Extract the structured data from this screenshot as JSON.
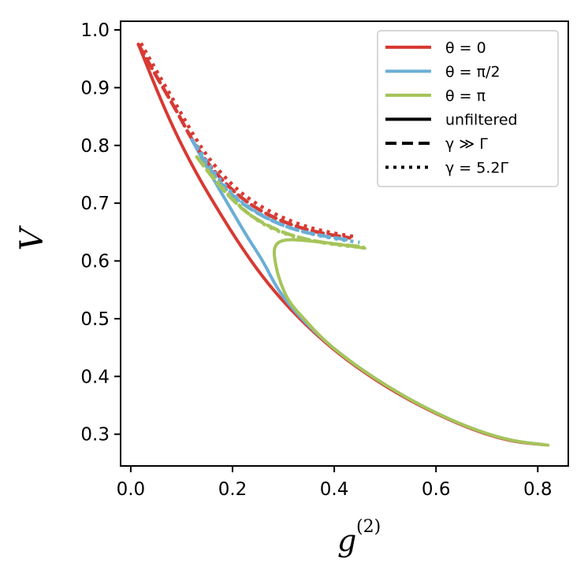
{
  "chart_data": {
    "type": "line",
    "title": "",
    "xlabel": "g",
    "xlabel_sup": "(2)",
    "ylabel": "V",
    "xlim": [
      -0.02,
      0.86
    ],
    "ylim": [
      0.245,
      1.015
    ],
    "x_ticks": [
      0.0,
      0.2,
      0.4,
      0.6,
      0.8
    ],
    "x_tick_labels": [
      "0.0",
      "0.2",
      "0.4",
      "0.6",
      "0.8"
    ],
    "y_ticks": [
      0.3,
      0.4,
      0.5,
      0.6,
      0.7,
      0.8,
      0.9,
      1.0
    ],
    "y_tick_labels": [
      "0.3",
      "0.4",
      "0.5",
      "0.6",
      "0.7",
      "0.8",
      "0.9",
      "1.0"
    ],
    "grid": false,
    "legend_position": "top-right",
    "legend": [
      {
        "label": "θ = 0",
        "color": "#d73a33",
        "style": "solid"
      },
      {
        "label": "θ = π/2",
        "color": "#6aaed6",
        "style": "solid"
      },
      {
        "label": "θ = π",
        "color": "#a6c45a",
        "style": "solid"
      },
      {
        "label": "unfiltered",
        "color": "#000000",
        "style": "solid"
      },
      {
        "label": "γ ≫ Γ",
        "color": "#000000",
        "style": "dashed"
      },
      {
        "label": "γ = 5.2Γ",
        "color": "#000000",
        "style": "dotted"
      }
    ],
    "series": [
      {
        "name": "θ=0 unfiltered",
        "color": "#d73a33",
        "style": "solid",
        "x": [
          0.81,
          0.75,
          0.68,
          0.6,
          0.52,
          0.44,
          0.38,
          0.32,
          0.27,
          0.22,
          0.17,
          0.12,
          0.07,
          0.015
        ],
        "y": [
          0.282,
          0.287,
          0.305,
          0.335,
          0.372,
          0.418,
          0.46,
          0.51,
          0.56,
          0.62,
          0.69,
          0.765,
          0.855,
          0.975
        ]
      },
      {
        "name": "θ=π/2 unfiltered",
        "color": "#6aaed6",
        "style": "solid",
        "x": [
          0.81,
          0.75,
          0.68,
          0.6,
          0.52,
          0.44,
          0.38,
          0.33,
          0.29,
          0.26,
          0.23,
          0.2,
          0.16,
          0.12
        ],
        "y": [
          0.282,
          0.288,
          0.306,
          0.336,
          0.374,
          0.42,
          0.462,
          0.505,
          0.548,
          0.6,
          0.64,
          0.685,
          0.745,
          0.81
        ]
      },
      {
        "name": "θ=π unfiltered",
        "color": "#a6c45a",
        "style": "solid",
        "x": [
          0.82,
          0.75,
          0.68,
          0.6,
          0.52,
          0.44,
          0.38,
          0.34,
          0.31,
          0.295,
          0.285,
          0.28,
          0.3,
          0.35,
          0.4,
          0.46
        ],
        "y": [
          0.281,
          0.288,
          0.306,
          0.336,
          0.374,
          0.42,
          0.462,
          0.5,
          0.53,
          0.56,
          0.59,
          0.625,
          0.638,
          0.635,
          0.63,
          0.622
        ]
      },
      {
        "name": "θ=0 γ≫Γ",
        "color": "#d73a33",
        "style": "dashed",
        "x": [
          0.015,
          0.05,
          0.09,
          0.12,
          0.15,
          0.19,
          0.23,
          0.28,
          0.33,
          0.38,
          0.43
        ],
        "y": [
          0.975,
          0.92,
          0.86,
          0.81,
          0.77,
          0.73,
          0.7,
          0.675,
          0.658,
          0.647,
          0.64
        ]
      },
      {
        "name": "θ=0 γ=5.2Γ",
        "color": "#d73a33",
        "style": "dotted",
        "x": [
          0.02,
          0.055,
          0.095,
          0.125,
          0.155,
          0.195,
          0.235,
          0.285,
          0.335,
          0.385,
          0.44
        ],
        "y": [
          0.977,
          0.922,
          0.862,
          0.815,
          0.775,
          0.735,
          0.705,
          0.68,
          0.662,
          0.65,
          0.642
        ]
      },
      {
        "name": "θ=π/2 γ≫Γ",
        "color": "#6aaed6",
        "style": "dashed",
        "x": [
          0.12,
          0.15,
          0.19,
          0.23,
          0.28,
          0.33,
          0.38,
          0.43
        ],
        "y": [
          0.81,
          0.765,
          0.72,
          0.692,
          0.668,
          0.652,
          0.643,
          0.636
        ]
      },
      {
        "name": "θ=π/2 γ=5.2Γ",
        "color": "#6aaed6",
        "style": "dotted",
        "x": [
          0.13,
          0.16,
          0.2,
          0.24,
          0.29,
          0.34,
          0.39,
          0.45
        ],
        "y": [
          0.8,
          0.758,
          0.715,
          0.688,
          0.664,
          0.65,
          0.64,
          0.632
        ]
      },
      {
        "name": "θ=π γ≫Γ",
        "color": "#a6c45a",
        "style": "dashed",
        "x": [
          0.13,
          0.16,
          0.2,
          0.24,
          0.29,
          0.34,
          0.39,
          0.45
        ],
        "y": [
          0.78,
          0.745,
          0.705,
          0.675,
          0.652,
          0.638,
          0.63,
          0.625
        ]
      },
      {
        "name": "θ=π γ=5.2Γ",
        "color": "#a6c45a",
        "style": "dotted",
        "x": [
          0.14,
          0.17,
          0.21,
          0.25,
          0.3,
          0.35,
          0.4,
          0.46
        ],
        "y": [
          0.77,
          0.737,
          0.698,
          0.668,
          0.647,
          0.636,
          0.628,
          0.623
        ]
      }
    ]
  }
}
